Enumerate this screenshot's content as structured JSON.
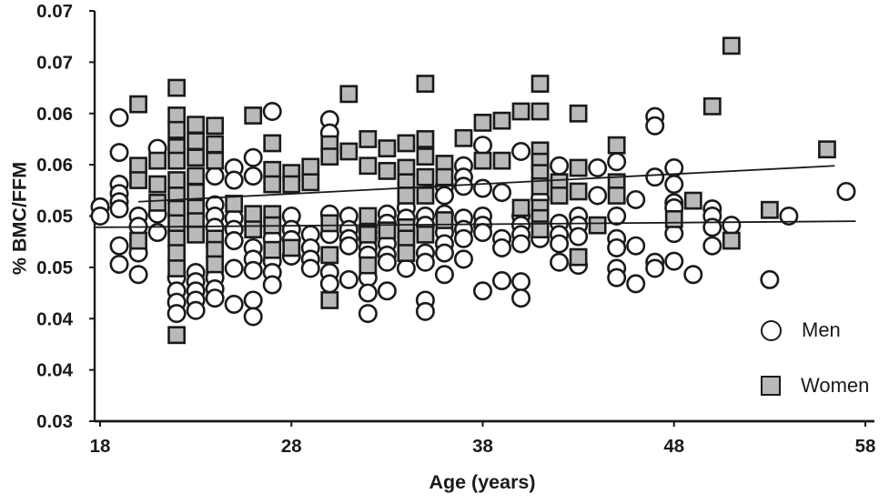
{
  "figure": {
    "background": "#ffffff",
    "ink_color": "#1a1a1a"
  },
  "chart_data": {
    "type": "scatter",
    "xlabel": "Age (years)",
    "ylabel": "% BMC/FFM",
    "xlim": [
      18,
      58
    ],
    "ylim": [
      0.03,
      0.07
    ],
    "x_ticks": [
      "18",
      "28",
      "38",
      "48",
      "58"
    ],
    "y_ticks": [
      0.03,
      0.035,
      0.04,
      0.045,
      0.05,
      0.055,
      0.06,
      0.065,
      0.07
    ],
    "y_tick_labels": [
      "0.03",
      "0.04",
      "0.04",
      "0.05",
      "0.05",
      "0.06",
      "0.06",
      "0.07",
      "0.07"
    ],
    "grid": false,
    "legend_position": "inside-bottom-right",
    "series": [
      {
        "name": "Men",
        "marker": "circle",
        "fill": "#ffffff",
        "stroke": "#1a1a1a",
        "points": [
          [
            18,
            0.0509
          ],
          [
            18,
            0.05
          ],
          [
            19,
            0.0596
          ],
          [
            19,
            0.0562
          ],
          [
            19,
            0.0531
          ],
          [
            19,
            0.0522
          ],
          [
            19,
            0.0514
          ],
          [
            19,
            0.0507
          ],
          [
            19,
            0.0471
          ],
          [
            19,
            0.0453
          ],
          [
            20,
            0.05
          ],
          [
            20,
            0.049
          ],
          [
            20,
            0.0464
          ],
          [
            20,
            0.0443
          ],
          [
            21,
            0.0566
          ],
          [
            21,
            0.0502
          ],
          [
            21,
            0.0484
          ],
          [
            22,
            0.044
          ],
          [
            22,
            0.0427
          ],
          [
            22,
            0.0416
          ],
          [
            22,
            0.0405
          ],
          [
            23,
            0.0445
          ],
          [
            23,
            0.0436
          ],
          [
            23,
            0.0427
          ],
          [
            23,
            0.0418
          ],
          [
            23,
            0.0408
          ],
          [
            24,
            0.0539
          ],
          [
            24,
            0.0511
          ],
          [
            24,
            0.05
          ],
          [
            24,
            0.0489
          ],
          [
            24,
            0.044
          ],
          [
            24,
            0.0429
          ],
          [
            24,
            0.042
          ],
          [
            25,
            0.0547
          ],
          [
            25,
            0.0535
          ],
          [
            25,
            0.0498
          ],
          [
            25,
            0.0487
          ],
          [
            25,
            0.0476
          ],
          [
            25,
            0.0449
          ],
          [
            25,
            0.0414
          ],
          [
            26,
            0.0557
          ],
          [
            26,
            0.0539
          ],
          [
            26,
            0.0469
          ],
          [
            26,
            0.0458
          ],
          [
            26,
            0.0447
          ],
          [
            26,
            0.0418
          ],
          [
            26,
            0.0402
          ],
          [
            27,
            0.0602
          ],
          [
            27,
            0.0478
          ],
          [
            27,
            0.0456
          ],
          [
            27,
            0.0445
          ],
          [
            27,
            0.0433
          ],
          [
            28,
            0.05
          ],
          [
            28,
            0.0487
          ],
          [
            28,
            0.0477
          ],
          [
            28,
            0.0461
          ],
          [
            29,
            0.0482
          ],
          [
            29,
            0.0469
          ],
          [
            29,
            0.0458
          ],
          [
            29,
            0.0449
          ],
          [
            30,
            0.0594
          ],
          [
            30,
            0.0581
          ],
          [
            30,
            0.0502
          ],
          [
            30,
            0.0482
          ],
          [
            30,
            0.0445
          ],
          [
            30,
            0.0434
          ],
          [
            31,
            0.05
          ],
          [
            31,
            0.0487
          ],
          [
            31,
            0.0478
          ],
          [
            31,
            0.0471
          ],
          [
            31,
            0.0438
          ],
          [
            32,
            0.0489
          ],
          [
            32,
            0.0484
          ],
          [
            32,
            0.0478
          ],
          [
            32,
            0.0469
          ],
          [
            32,
            0.0462
          ],
          [
            32,
            0.044
          ],
          [
            32,
            0.0425
          ],
          [
            32,
            0.0405
          ],
          [
            33,
            0.0502
          ],
          [
            33,
            0.0493
          ],
          [
            33,
            0.0473
          ],
          [
            33,
            0.0462
          ],
          [
            33,
            0.0455
          ],
          [
            33,
            0.0427
          ],
          [
            34,
            0.0508
          ],
          [
            34,
            0.0498
          ],
          [
            34,
            0.0449
          ],
          [
            35,
            0.05
          ],
          [
            35,
            0.0491
          ],
          [
            35,
            0.0464
          ],
          [
            35,
            0.0455
          ],
          [
            35,
            0.0418
          ],
          [
            35,
            0.0407
          ],
          [
            36,
            0.0529
          ],
          [
            36,
            0.052
          ],
          [
            36,
            0.0502
          ],
          [
            36,
            0.0484
          ],
          [
            36,
            0.0473
          ],
          [
            36,
            0.0464
          ],
          [
            36,
            0.0443
          ],
          [
            37,
            0.0549
          ],
          [
            37,
            0.0538
          ],
          [
            37,
            0.0529
          ],
          [
            37,
            0.0498
          ],
          [
            37,
            0.0487
          ],
          [
            37,
            0.0478
          ],
          [
            37,
            0.0458
          ],
          [
            38,
            0.0569
          ],
          [
            38,
            0.0527
          ],
          [
            38,
            0.05
          ],
          [
            38,
            0.0491
          ],
          [
            38,
            0.0484
          ],
          [
            38,
            0.0427
          ],
          [
            39,
            0.0523
          ],
          [
            39,
            0.0478
          ],
          [
            39,
            0.0469
          ],
          [
            39,
            0.0437
          ],
          [
            40,
            0.0563
          ],
          [
            40,
            0.05
          ],
          [
            40,
            0.0491
          ],
          [
            40,
            0.0482
          ],
          [
            40,
            0.0473
          ],
          [
            40,
            0.0436
          ],
          [
            40,
            0.042
          ],
          [
            41,
            0.0517
          ],
          [
            41,
            0.0478
          ],
          [
            42,
            0.0549
          ],
          [
            42,
            0.0493
          ],
          [
            42,
            0.0482
          ],
          [
            42,
            0.0473
          ],
          [
            42,
            0.0455
          ],
          [
            43,
            0.05
          ],
          [
            43,
            0.0491
          ],
          [
            43,
            0.048
          ],
          [
            43,
            0.0452
          ],
          [
            44,
            0.0547
          ],
          [
            44,
            0.052
          ],
          [
            45,
            0.0553
          ],
          [
            45,
            0.05
          ],
          [
            45,
            0.0478
          ],
          [
            45,
            0.0469
          ],
          [
            45,
            0.0449
          ],
          [
            45,
            0.044
          ],
          [
            46,
            0.0516
          ],
          [
            46,
            0.0471
          ],
          [
            46,
            0.0434
          ],
          [
            47,
            0.0597
          ],
          [
            47,
            0.0588
          ],
          [
            47,
            0.0538
          ],
          [
            47,
            0.0455
          ],
          [
            47,
            0.0449
          ],
          [
            48,
            0.0547
          ],
          [
            48,
            0.0531
          ],
          [
            48,
            0.0513
          ],
          [
            48,
            0.0508
          ],
          [
            48,
            0.0483
          ],
          [
            48,
            0.0456
          ],
          [
            49,
            0.0443
          ],
          [
            50,
            0.0507
          ],
          [
            50,
            0.05
          ],
          [
            50,
            0.0489
          ],
          [
            50,
            0.0471
          ],
          [
            51,
            0.0491
          ],
          [
            53,
            0.0438
          ],
          [
            54,
            0.05
          ],
          [
            57,
            0.0524
          ]
        ]
      },
      {
        "name": "Women",
        "marker": "square",
        "fill": "#b9b9b9",
        "stroke": "#1a1a1a",
        "points": [
          [
            20,
            0.0609
          ],
          [
            20,
            0.0549
          ],
          [
            20,
            0.0535
          ],
          [
            20,
            0.0476
          ],
          [
            21,
            0.0554
          ],
          [
            21,
            0.0531
          ],
          [
            21,
            0.0513
          ],
          [
            22,
            0.0625
          ],
          [
            22,
            0.0598
          ],
          [
            22,
            0.0584
          ],
          [
            22,
            0.0567
          ],
          [
            22,
            0.0554
          ],
          [
            22,
            0.0535
          ],
          [
            22,
            0.052
          ],
          [
            22,
            0.0507
          ],
          [
            22,
            0.0493
          ],
          [
            22,
            0.0478
          ],
          [
            22,
            0.0464
          ],
          [
            22,
            0.0449
          ],
          [
            22,
            0.0384
          ],
          [
            23,
            0.0589
          ],
          [
            23,
            0.0573
          ],
          [
            23,
            0.0557
          ],
          [
            23,
            0.0539
          ],
          [
            23,
            0.0523
          ],
          [
            23,
            0.0508
          ],
          [
            23,
            0.0495
          ],
          [
            23,
            0.0482
          ],
          [
            24,
            0.0588
          ],
          [
            24,
            0.057
          ],
          [
            24,
            0.0554
          ],
          [
            24,
            0.0478
          ],
          [
            24,
            0.0467
          ],
          [
            24,
            0.0453
          ],
          [
            25,
            0.0512
          ],
          [
            26,
            0.0598
          ],
          [
            26,
            0.0502
          ],
          [
            26,
            0.0487
          ],
          [
            27,
            0.0571
          ],
          [
            27,
            0.0545
          ],
          [
            27,
            0.0531
          ],
          [
            27,
            0.0502
          ],
          [
            27,
            0.0491
          ],
          [
            27,
            0.0467
          ],
          [
            28,
            0.0542
          ],
          [
            28,
            0.0531
          ],
          [
            28,
            0.0469
          ],
          [
            29,
            0.0548
          ],
          [
            29,
            0.0533
          ],
          [
            30,
            0.057
          ],
          [
            30,
            0.0558
          ],
          [
            30,
            0.0493
          ],
          [
            30,
            0.0462
          ],
          [
            30,
            0.0418
          ],
          [
            31,
            0.0619
          ],
          [
            31,
            0.0563
          ],
          [
            32,
            0.0575
          ],
          [
            32,
            0.0549
          ],
          [
            32,
            0.05
          ],
          [
            32,
            0.0482
          ],
          [
            32,
            0.0452
          ],
          [
            33,
            0.0566
          ],
          [
            33,
            0.0544
          ],
          [
            33,
            0.0486
          ],
          [
            34,
            0.0571
          ],
          [
            34,
            0.0547
          ],
          [
            34,
            0.0533
          ],
          [
            34,
            0.052
          ],
          [
            34,
            0.0489
          ],
          [
            34,
            0.0478
          ],
          [
            34,
            0.0464
          ],
          [
            35,
            0.0629
          ],
          [
            35,
            0.0575
          ],
          [
            35,
            0.0558
          ],
          [
            35,
            0.0538
          ],
          [
            35,
            0.052
          ],
          [
            35,
            0.0482
          ],
          [
            36,
            0.0551
          ],
          [
            36,
            0.0538
          ],
          [
            36,
            0.0496
          ],
          [
            37,
            0.0576
          ],
          [
            38,
            0.0591
          ],
          [
            38,
            0.0554
          ],
          [
            39,
            0.0593
          ],
          [
            39,
            0.0554
          ],
          [
            40,
            0.0602
          ],
          [
            40,
            0.0508
          ],
          [
            41,
            0.0629
          ],
          [
            41,
            0.0602
          ],
          [
            41,
            0.0564
          ],
          [
            41,
            0.0553
          ],
          [
            41,
            0.0542
          ],
          [
            41,
            0.0529
          ],
          [
            41,
            0.0508
          ],
          [
            41,
            0.0498
          ],
          [
            41,
            0.0487
          ],
          [
            42,
            0.0533
          ],
          [
            42,
            0.052
          ],
          [
            43,
            0.06
          ],
          [
            43,
            0.0547
          ],
          [
            43,
            0.0524
          ],
          [
            43,
            0.046
          ],
          [
            44,
            0.0491
          ],
          [
            45,
            0.0569
          ],
          [
            45,
            0.0533
          ],
          [
            45,
            0.052
          ],
          [
            48,
            0.0497
          ],
          [
            49,
            0.0515
          ],
          [
            50,
            0.0607
          ],
          [
            51,
            0.0666
          ],
          [
            51,
            0.0476
          ],
          [
            53,
            0.0506
          ],
          [
            56,
            0.0565
          ]
        ]
      }
    ],
    "trend_lines": [
      {
        "name": "men-trend-line",
        "from": [
          17.7,
          0.0489
        ],
        "to": [
          57.5,
          0.0495
        ],
        "color": "#1a1a1a"
      },
      {
        "name": "women-trend-line",
        "from": [
          20.0,
          0.0514
        ],
        "to": [
          56.4,
          0.0549
        ],
        "color": "#1a1a1a"
      }
    ]
  }
}
